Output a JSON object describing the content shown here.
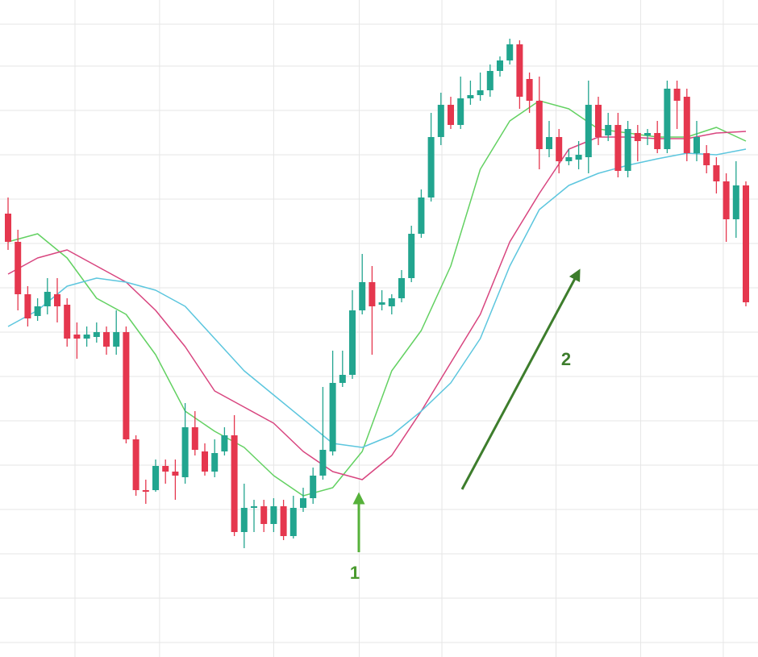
{
  "chart_data": {
    "type": "candlestick",
    "categories": [
      null,
      null,
      null,
      null,
      null,
      null,
      null,
      null,
      null,
      null,
      null,
      null,
      null,
      null,
      null,
      null,
      null,
      null,
      null,
      null,
      null,
      null,
      null,
      null,
      null,
      null,
      null,
      null,
      null,
      null,
      null,
      null,
      null,
      null,
      null,
      null,
      null,
      null,
      null,
      null,
      null,
      null,
      null,
      null,
      null,
      null,
      null,
      null,
      null,
      null,
      null,
      null,
      null,
      null,
      null,
      null,
      null,
      null,
      null,
      null,
      null,
      null,
      null,
      null,
      null,
      null,
      null,
      null,
      null,
      null,
      null,
      null,
      null,
      null,
      null,
      null
    ],
    "open": [
      550,
      515,
      450,
      423,
      435,
      450,
      437,
      400,
      395,
      397,
      403,
      385,
      403,
      270,
      207,
      207,
      237,
      230,
      223,
      285,
      255,
      230,
      255,
      275,
      155,
      185,
      187,
      165,
      187,
      150,
      185,
      197,
      225,
      255,
      340,
      350,
      430,
      465,
      437,
      435,
      445,
      470,
      525,
      570,
      645,
      685,
      660,
      693,
      697,
      703,
      727,
      740,
      760,
      717,
      690,
      630,
      645,
      615,
      617,
      620,
      685,
      647,
      660,
      603,
      650,
      647,
      650,
      630,
      705,
      695,
      625,
      625,
      610,
      590,
      543,
      585
    ],
    "high": [
      570,
      530,
      460,
      445,
      470,
      470,
      445,
      415,
      410,
      415,
      410,
      430,
      410,
      275,
      220,
      245,
      245,
      245,
      315,
      305,
      265,
      270,
      285,
      300,
      215,
      195,
      195,
      197,
      195,
      200,
      210,
      235,
      335,
      380,
      380,
      455,
      500,
      485,
      455,
      450,
      480,
      535,
      580,
      675,
      700,
      695,
      720,
      715,
      725,
      735,
      745,
      767,
      765,
      725,
      720,
      665,
      655,
      630,
      640,
      715,
      695,
      675,
      675,
      665,
      660,
      655,
      665,
      715,
      715,
      705,
      665,
      635,
      620,
      600,
      615,
      590
    ],
    "low": [
      505,
      430,
      410,
      417,
      425,
      415,
      385,
      370,
      385,
      390,
      375,
      375,
      265,
      200,
      190,
      205,
      215,
      195,
      215,
      250,
      225,
      223,
      250,
      150,
      135,
      155,
      155,
      155,
      145,
      147,
      180,
      190,
      220,
      250,
      335,
      345,
      425,
      375,
      430,
      425,
      440,
      465,
      520,
      565,
      635,
      655,
      655,
      685,
      690,
      695,
      720,
      735,
      680,
      675,
      605,
      620,
      600,
      610,
      605,
      600,
      635,
      640,
      595,
      595,
      615,
      635,
      625,
      625,
      655,
      615,
      615,
      600,
      575,
      515,
      520,
      435
    ],
    "close": [
      515,
      450,
      420,
      435,
      453,
      435,
      395,
      395,
      400,
      403,
      385,
      403,
      270,
      207,
      205,
      237,
      230,
      225,
      285,
      257,
      230,
      253,
      275,
      155,
      185,
      187,
      165,
      187,
      150,
      185,
      197,
      225,
      257,
      340,
      350,
      430,
      465,
      435,
      440,
      445,
      470,
      525,
      570,
      645,
      685,
      660,
      693,
      697,
      703,
      727,
      740,
      760,
      695,
      690,
      630,
      645,
      615,
      620,
      623,
      685,
      645,
      660,
      603,
      655,
      640,
      650,
      630,
      705,
      690,
      625,
      645,
      610,
      590,
      543,
      585,
      440
    ],
    "up_color": "#22a58f",
    "down_color": "#e5374e",
    "lines": [
      {
        "color": "#63d162",
        "x": [
          0,
          3,
          6,
          9,
          12,
          15,
          18,
          21,
          24,
          27,
          30,
          33,
          36,
          39,
          42,
          45,
          48,
          51,
          54,
          57,
          60,
          63,
          66,
          69,
          72,
          75
        ],
        "values": [
          515,
          525,
          495,
          445,
          425,
          375,
          305,
          280,
          260,
          225,
          200,
          210,
          255,
          355,
          405,
          485,
          605,
          665,
          690,
          680,
          655,
          650,
          645,
          645,
          657,
          640
        ]
      },
      {
        "color": "#d8457f",
        "x": [
          0,
          3,
          6,
          9,
          12,
          15,
          18,
          21,
          24,
          27,
          30,
          33,
          36,
          39,
          42,
          45,
          48,
          51,
          54,
          57,
          60,
          63,
          66,
          69,
          72,
          75
        ],
        "values": [
          475,
          495,
          505,
          485,
          465,
          430,
          385,
          330,
          310,
          290,
          255,
          230,
          220,
          250,
          305,
          365,
          425,
          515,
          575,
          630,
          645,
          645,
          643,
          643,
          650,
          652
        ]
      },
      {
        "color": "#5cc6de",
        "x": [
          0,
          3,
          6,
          9,
          12,
          15,
          18,
          21,
          24,
          27,
          30,
          33,
          36,
          39,
          42,
          45,
          48,
          51,
          54,
          57,
          60,
          63,
          66,
          69,
          72,
          75
        ],
        "values": [
          410,
          430,
          460,
          470,
          465,
          455,
          435,
          395,
          355,
          325,
          295,
          265,
          260,
          275,
          305,
          340,
          395,
          485,
          555,
          585,
          600,
          610,
          618,
          625,
          623,
          630
        ]
      }
    ],
    "xlim": [
      -0.82,
      76.23
    ],
    "ylim": [
      0,
      815
    ],
    "xticks": [
      6.8,
      15.4,
      27,
      35.7,
      44.1,
      55.7,
      64.3,
      72.7
    ],
    "yticks": [
      785,
      733,
      678,
      623,
      568,
      513,
      458,
      403,
      348,
      293,
      238,
      183,
      128,
      73,
      18
    ],
    "grid": true,
    "annotations": [
      {
        "text": "1",
        "color": "#4a9a2e"
      },
      {
        "text": "2",
        "color": "#3d7d2c"
      }
    ]
  }
}
